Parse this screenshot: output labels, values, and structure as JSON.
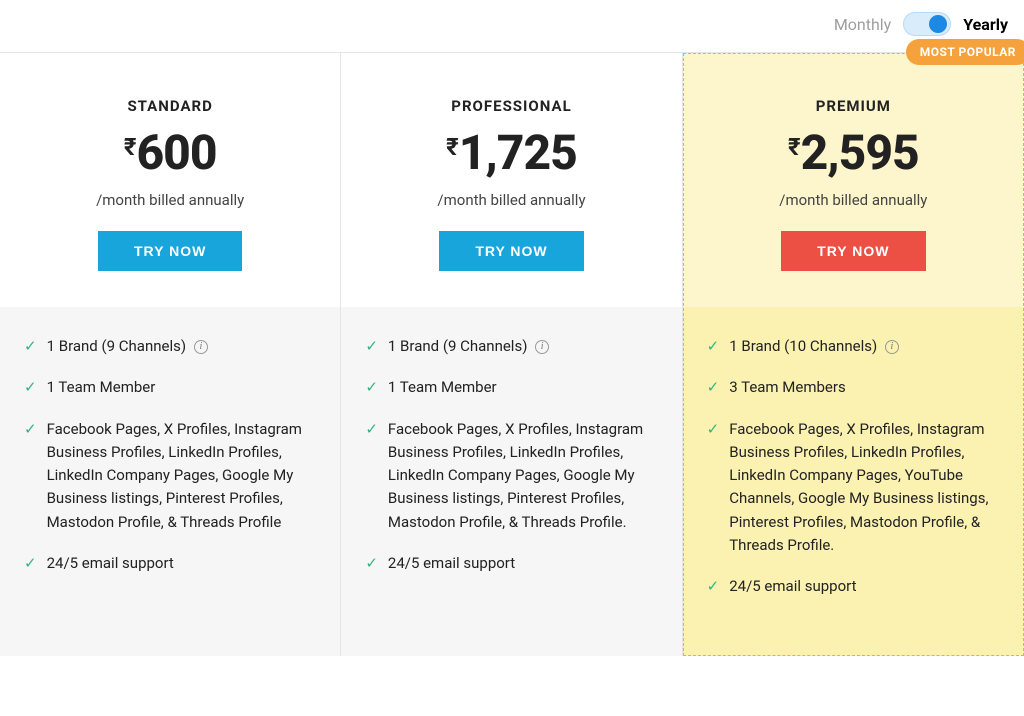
{
  "toggle": {
    "monthly_label": "Monthly",
    "yearly_label": "Yearly",
    "active": "yearly"
  },
  "colors": {
    "cta_blue": "#18a5dc",
    "cta_red": "#ec4f44",
    "badge": "#f6a23c",
    "check": "#36b37e",
    "premium_header_bg": "#fdf6cc",
    "premium_features_bg": "#fbf2b2",
    "premium_border": "#f0a75a",
    "features_bg": "#f6f6f6",
    "toggle_bg": "#d8ecfb",
    "toggle_knob": "#1e88e5"
  },
  "plans": [
    {
      "id": "standard",
      "name": "STANDARD",
      "currency": "₹",
      "price": "600",
      "billing": "/month billed annually",
      "cta": "TRY NOW",
      "cta_style": "blue",
      "highlighted": false,
      "features": [
        {
          "text": "1 Brand (9 Channels)",
          "info": true
        },
        {
          "text": "1 Team Member",
          "info": false
        },
        {
          "text": "Facebook Pages, X Profiles, Instagram Business Profiles, LinkedIn Profiles, LinkedIn Company Pages, Google My Business listings, Pinterest Profiles, Mastodon Profile, & Threads Profile",
          "info": false
        },
        {
          "text": "24/5 email support",
          "info": false
        }
      ]
    },
    {
      "id": "professional",
      "name": "PROFESSIONAL",
      "currency": "₹",
      "price": "1,725",
      "billing": "/month billed annually",
      "cta": "TRY NOW",
      "cta_style": "blue",
      "highlighted": false,
      "features": [
        {
          "text": "1 Brand (9 Channels)",
          "info": true
        },
        {
          "text": "1 Team Member",
          "info": false
        },
        {
          "text": "Facebook Pages, X Profiles, Instagram Business Profiles, LinkedIn Profiles, LinkedIn Company Pages, Google My Business listings, Pinterest Profiles, Mastodon Profile, & Threads Profile.",
          "info": false
        },
        {
          "text": "24/5 email support",
          "info": false
        }
      ]
    },
    {
      "id": "premium",
      "name": "PREMIUM",
      "currency": "₹",
      "price": "2,595",
      "billing": "/month billed annually",
      "cta": "TRY NOW",
      "cta_style": "red",
      "highlighted": true,
      "badge": "MOST POPULAR",
      "features": [
        {
          "text": "1 Brand (10 Channels)",
          "info": true
        },
        {
          "text": "3 Team Members",
          "info": false
        },
        {
          "text": "Facebook Pages, X Profiles, Instagram Business Profiles, LinkedIn Profiles, LinkedIn Company Pages, YouTube Channels, Google My Business listings, Pinterest Profiles, Mastodon Profile, & Threads Profile.",
          "info": false
        },
        {
          "text": "24/5 email support",
          "info": false
        }
      ]
    }
  ]
}
